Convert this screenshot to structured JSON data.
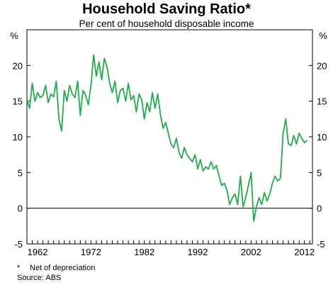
{
  "chart_data": {
    "type": "line",
    "title": "Household Saving Ratio*",
    "subtitle": "Per cent of household disposable income",
    "ylabel_left": "%",
    "ylabel_right": "%",
    "ylim": [
      -5,
      25
    ],
    "yticks": [
      -5,
      0,
      5,
      10,
      15,
      20
    ],
    "xlim": [
      1960.0,
      2013.5
    ],
    "xticks": [
      1962,
      1972,
      1982,
      1992,
      2002,
      2012
    ],
    "grid": "horizontal zero line only",
    "line_color": "#1fae4a",
    "series": [
      {
        "x": [
          1960.0,
          1960.5,
          1961.0,
          1961.5,
          1962.0,
          1962.5,
          1963.0,
          1963.5,
          1964.0,
          1964.5,
          1965.0,
          1965.5,
          1966.0,
          1966.5,
          1967.0,
          1967.5,
          1968.0,
          1968.5,
          1969.0,
          1969.5,
          1970.0,
          1970.5,
          1971.0,
          1971.5,
          1972.0,
          1972.5,
          1973.0,
          1973.5,
          1974.0,
          1974.5,
          1975.0,
          1975.5,
          1976.0,
          1976.5,
          1977.0,
          1977.5,
          1978.0,
          1978.5,
          1979.0,
          1979.5,
          1980.0,
          1980.5,
          1981.0,
          1981.5,
          1982.0,
          1982.5,
          1983.0,
          1983.5,
          1984.0,
          1984.5,
          1985.0,
          1985.5,
          1986.0,
          1986.5,
          1987.0,
          1987.5,
          1988.0,
          1988.5,
          1989.0,
          1989.5,
          1990.0,
          1990.5,
          1991.0,
          1991.5,
          1992.0,
          1992.5,
          1993.0,
          1993.5,
          1994.0,
          1994.5,
          1995.0,
          1995.5,
          1996.0,
          1996.5,
          1997.0,
          1997.5,
          1998.0,
          1998.5,
          1999.0,
          1999.5,
          2000.0,
          2000.5,
          2001.0,
          2001.5,
          2002.0,
          2002.5,
          2003.0,
          2003.5,
          2004.0,
          2004.5,
          2005.0,
          2005.5,
          2006.0,
          2006.5,
          2007.0,
          2007.5,
          2008.0,
          2008.5,
          2009.0,
          2009.5,
          2010.0,
          2010.5,
          2011.0,
          2011.5,
          2012.0,
          2012.5
        ],
        "values": [
          15.2,
          14.0,
          17.5,
          15.0,
          16.2,
          15.5,
          15.8,
          17.2,
          14.8,
          16.0,
          15.6,
          17.8,
          12.5,
          10.8,
          16.5,
          15.0,
          17.2,
          16.0,
          15.5,
          17.8,
          13.0,
          16.5,
          15.8,
          14.5,
          17.2,
          21.5,
          18.5,
          20.5,
          18.0,
          21.0,
          19.8,
          17.5,
          16.2,
          17.8,
          14.8,
          16.5,
          16.8,
          15.0,
          17.5,
          15.2,
          15.8,
          13.5,
          16.0,
          15.2,
          12.5,
          14.8,
          13.5,
          16.2,
          14.0,
          16.0,
          13.2,
          11.2,
          12.0,
          10.5,
          9.0,
          8.5,
          9.8,
          7.8,
          7.0,
          8.5,
          7.5,
          7.0,
          6.5,
          7.5,
          5.5,
          6.8,
          5.2,
          5.8,
          5.5,
          6.5,
          5.5,
          6.0,
          4.5,
          3.2,
          3.5,
          2.5,
          0.5,
          1.5,
          2.0,
          0.5,
          4.5,
          0.2,
          1.5,
          3.2,
          5.0,
          -1.8,
          0.2,
          1.5,
          0.5,
          2.2,
          1.0,
          2.0,
          3.5,
          4.5,
          3.8,
          4.2,
          10.5,
          12.5,
          9.0,
          8.8,
          10.2,
          9.0,
          10.5,
          9.8,
          9.2,
          9.5
        ]
      }
    ]
  },
  "footnotes": {
    "star": "*",
    "note": "Net of depreciation",
    "source": "Source: ABS"
  }
}
